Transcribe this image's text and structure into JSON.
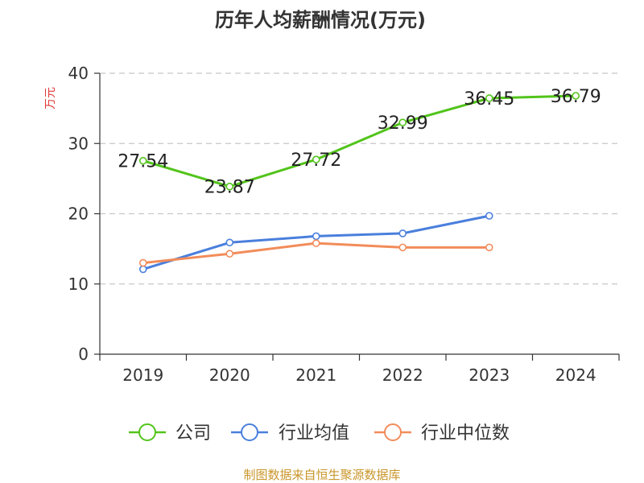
{
  "chart_data": {
    "type": "line",
    "title": "历年人均薪酬情况(万元)",
    "ylabel": "万元",
    "xlabel": "",
    "categories": [
      "2019",
      "2020",
      "2021",
      "2022",
      "2023",
      "2024"
    ],
    "ylim": [
      0,
      40
    ],
    "yticks": [
      0,
      10,
      20,
      30,
      40
    ],
    "grid": "horizontal-dashed",
    "legend_position": "bottom",
    "series": [
      {
        "name": "公司",
        "color": "#52c41a",
        "values": [
          27.54,
          23.87,
          27.72,
          32.99,
          36.45,
          36.79
        ],
        "labels": [
          "27.54",
          "23.87",
          "27.72",
          "32.99",
          "36.45",
          "36.79"
        ],
        "show_labels": true
      },
      {
        "name": "行业均值",
        "color": "#4a7fdc",
        "values": [
          12.1,
          15.9,
          16.8,
          17.2,
          19.7,
          null
        ],
        "show_labels": false
      },
      {
        "name": "行业中位数",
        "color": "#f28c5a",
        "values": [
          13.0,
          14.3,
          15.8,
          15.2,
          15.2,
          null
        ],
        "show_labels": false
      }
    ],
    "source": "制图数据来自恒生聚源数据库"
  },
  "colors": {
    "axis": "#333333",
    "grid": "#c8c8c8",
    "ylabel": "#e03a3a",
    "source": "#c9962a"
  }
}
